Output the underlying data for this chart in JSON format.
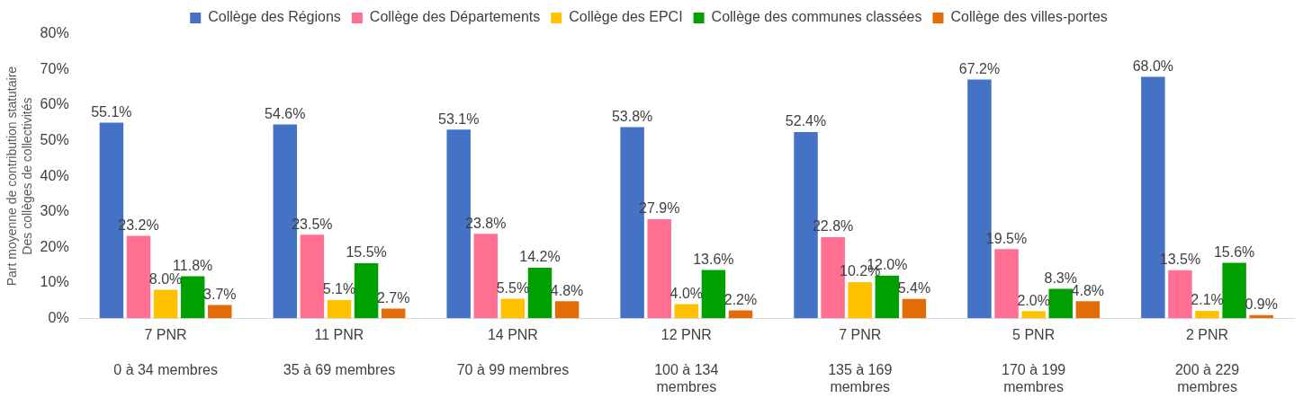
{
  "chart_data": {
    "type": "bar",
    "ylabel": "Part moyenne de contribution statutaire\nDes collèges de collectivités",
    "categories": [
      "7 PNR\n0 à 34 membres",
      "11 PNR\n35 à 69 membres",
      "14 PNR\n70 à 99 membres",
      "12 PNR\n100 à 134 membres",
      "7 PNR\n135 à 169 membres",
      "5 PNR\n170 à 199 membres",
      "2 PNR\n200 à 229 membres"
    ],
    "series": [
      {
        "name": "Collège des Régions",
        "color": "#4472c4",
        "values": [
          55.1,
          54.6,
          53.1,
          53.8,
          52.4,
          67.2,
          68.0
        ],
        "value_labels": [
          "55.1%",
          "54.6%",
          "53.1%",
          "53.8%",
          "52.4%",
          "67.2%",
          "68.0%"
        ]
      },
      {
        "name": "Collège des Départements",
        "color": "#ff6f91",
        "values": [
          23.2,
          23.5,
          23.8,
          27.9,
          22.8,
          19.5,
          13.5
        ],
        "value_labels": [
          "23.2%",
          "23.5%",
          "23.8%",
          "27.9%",
          "22.8%",
          "19.5%",
          "13.5%"
        ]
      },
      {
        "name": "Collège des EPCI",
        "color": "#ffc000",
        "values": [
          8.0,
          5.1,
          5.5,
          4.0,
          10.2,
          2.0,
          2.1
        ],
        "value_labels": [
          "8.0%",
          "5.1%",
          "5.5%",
          "4.0%",
          "10.2%",
          "2.0%",
          "2.1%"
        ]
      },
      {
        "name": "Collège des communes classées",
        "color": "#00a000",
        "values": [
          11.8,
          15.5,
          14.2,
          13.6,
          12.0,
          8.3,
          15.6
        ],
        "value_labels": [
          "11.8%",
          "15.5%",
          "14.2%",
          "13.6%",
          "12.0%",
          "8.3%",
          "15.6%"
        ]
      },
      {
        "name": "Collège des villes-portes",
        "color": "#e36c09",
        "values": [
          3.7,
          2.7,
          4.8,
          2.2,
          5.4,
          4.8,
          0.9
        ],
        "value_labels": [
          "3.7%",
          "2.7%",
          "4.8%",
          "2.2%",
          "5.4%",
          "4.8%",
          "0.9%"
        ]
      }
    ],
    "ylim": [
      0,
      80
    ],
    "yticks": [
      {
        "value": 0,
        "label": "0%"
      },
      {
        "value": 10,
        "label": "10%"
      },
      {
        "value": 20,
        "label": "20%"
      },
      {
        "value": 30,
        "label": "30%"
      },
      {
        "value": 40,
        "label": "40%"
      },
      {
        "value": 50,
        "label": "50%"
      },
      {
        "value": 60,
        "label": "60%"
      },
      {
        "value": 70,
        "label": "70%"
      },
      {
        "value": 80,
        "label": "80%"
      }
    ],
    "grid": false,
    "legend": "top"
  }
}
